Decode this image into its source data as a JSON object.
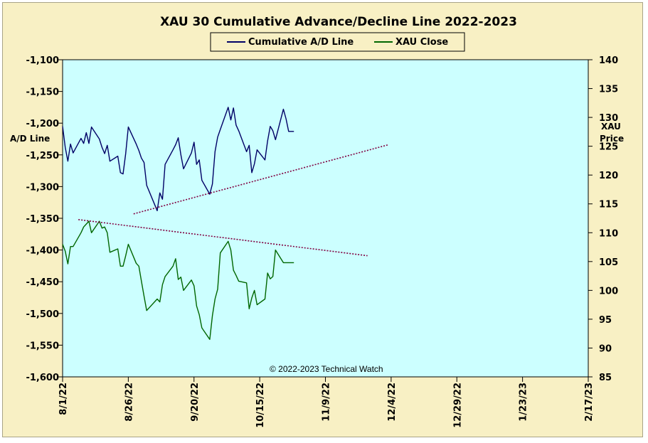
{
  "chart_data": {
    "type": "line",
    "title": "XAU 30 Cumulative Advance/Decline Line 2022-2023",
    "ylabel_left": "A/D Line",
    "ylabel_right_line1": "XAU",
    "ylabel_right_line2": "Price",
    "annotation": "© 2022-2023  Technical Watch",
    "legend_position": "top-center",
    "grid": false,
    "background_color": "#ccffff",
    "ylim_left": [
      -1600,
      -1100
    ],
    "ylim_right": [
      85,
      140
    ],
    "xlim": [
      "2022-08-01",
      "2023-02-17"
    ],
    "x_ticks": [
      "8/1/22",
      "8/26/22",
      "9/20/22",
      "10/15/22",
      "11/9/22",
      "12/4/22",
      "12/29/22",
      "1/23/23",
      "2/17/23"
    ],
    "y_ticks_left": [
      "-1,100",
      "-1,150",
      "-1,200",
      "-1,250",
      "-1,300",
      "-1,350",
      "-1,400",
      "-1,450",
      "-1,500",
      "-1,550",
      "-1,600"
    ],
    "y_ticks_right": [
      "140",
      "135",
      "130",
      "125",
      "120",
      "115",
      "110",
      "105",
      "100",
      "95",
      "90",
      "85"
    ],
    "series": [
      {
        "name": "Cumulative A/D Line",
        "axis": "left",
        "color": "#000066",
        "x": [
          "2022-08-01",
          "2022-08-02",
          "2022-08-03",
          "2022-08-04",
          "2022-08-05",
          "2022-08-08",
          "2022-08-09",
          "2022-08-10",
          "2022-08-11",
          "2022-08-12",
          "2022-08-15",
          "2022-08-16",
          "2022-08-17",
          "2022-08-18",
          "2022-08-19",
          "2022-08-22",
          "2022-08-23",
          "2022-08-24",
          "2022-08-25",
          "2022-08-26",
          "2022-08-29",
          "2022-08-30",
          "2022-08-31",
          "2022-09-01",
          "2022-09-02",
          "2022-09-06",
          "2022-09-07",
          "2022-09-08",
          "2022-09-09",
          "2022-09-12",
          "2022-09-13",
          "2022-09-14",
          "2022-09-15",
          "2022-09-16",
          "2022-09-19",
          "2022-09-20",
          "2022-09-21",
          "2022-09-22",
          "2022-09-23",
          "2022-09-26",
          "2022-09-27",
          "2022-09-28",
          "2022-09-29",
          "2022-09-30",
          "2022-10-03",
          "2022-10-04",
          "2022-10-05",
          "2022-10-06",
          "2022-10-07",
          "2022-10-10",
          "2022-10-11",
          "2022-10-12",
          "2022-10-13",
          "2022-10-14",
          "2022-10-17",
          "2022-10-18",
          "2022-10-19",
          "2022-10-20",
          "2022-10-21",
          "2022-10-24",
          "2022-10-25",
          "2022-10-26",
          "2022-10-27",
          "2022-10-28"
        ],
        "values": [
          -1205,
          -1238,
          -1260,
          -1233,
          -1247,
          -1224,
          -1232,
          -1215,
          -1232,
          -1206,
          -1225,
          -1238,
          -1248,
          -1235,
          -1260,
          -1252,
          -1278,
          -1280,
          -1248,
          -1206,
          -1233,
          -1243,
          -1255,
          -1262,
          -1298,
          -1338,
          -1310,
          -1320,
          -1265,
          -1242,
          -1234,
          -1223,
          -1250,
          -1272,
          -1247,
          -1230,
          -1265,
          -1258,
          -1290,
          -1312,
          -1296,
          -1245,
          -1222,
          -1210,
          -1175,
          -1195,
          -1176,
          -1203,
          -1212,
          -1245,
          -1235,
          -1278,
          -1264,
          -1242,
          -1258,
          -1228,
          -1205,
          -1212,
          -1226,
          -1178,
          -1193,
          -1213,
          -1213,
          -1213
        ]
      },
      {
        "name": "XAU Close",
        "axis": "right",
        "color": "#006600",
        "x": [
          "2022-08-01",
          "2022-08-02",
          "2022-08-03",
          "2022-08-04",
          "2022-08-05",
          "2022-08-08",
          "2022-08-09",
          "2022-08-10",
          "2022-08-11",
          "2022-08-12",
          "2022-08-15",
          "2022-08-16",
          "2022-08-17",
          "2022-08-18",
          "2022-08-19",
          "2022-08-22",
          "2022-08-23",
          "2022-08-24",
          "2022-08-25",
          "2022-08-26",
          "2022-08-29",
          "2022-08-30",
          "2022-08-31",
          "2022-09-01",
          "2022-09-02",
          "2022-09-06",
          "2022-09-07",
          "2022-09-08",
          "2022-09-09",
          "2022-09-12",
          "2022-09-13",
          "2022-09-14",
          "2022-09-15",
          "2022-09-16",
          "2022-09-19",
          "2022-09-20",
          "2022-09-21",
          "2022-09-22",
          "2022-09-23",
          "2022-09-26",
          "2022-09-27",
          "2022-09-28",
          "2022-09-29",
          "2022-09-30",
          "2022-10-03",
          "2022-10-04",
          "2022-10-05",
          "2022-10-06",
          "2022-10-07",
          "2022-10-10",
          "2022-10-11",
          "2022-10-12",
          "2022-10-13",
          "2022-10-14",
          "2022-10-17",
          "2022-10-18",
          "2022-10-19",
          "2022-10-20",
          "2022-10-21",
          "2022-10-24",
          "2022-10-25",
          "2022-10-26",
          "2022-10-27",
          "2022-10-28"
        ],
        "values": [
          108.0,
          106.8,
          104.6,
          107.6,
          107.6,
          110.0,
          111.0,
          111.5,
          112.0,
          110.0,
          112.0,
          110.8,
          111.0,
          110.0,
          106.6,
          107.2,
          104.2,
          104.2,
          106.0,
          108.0,
          104.7,
          104.2,
          101.6,
          99.0,
          96.5,
          98.5,
          98.0,
          101.0,
          102.4,
          104.2,
          105.5,
          101.9,
          102.3,
          100.0,
          101.8,
          100.8,
          97.3,
          95.8,
          93.5,
          91.5,
          95.6,
          98.5,
          100.2,
          106.5,
          108.5,
          107.0,
          103.5,
          102.6,
          101.6,
          101.3,
          96.8,
          98.7,
          100.0,
          97.5,
          98.5,
          103.0,
          102.0,
          102.4,
          107.0,
          104.8,
          104.8,
          104.8,
          104.8,
          104.8
        ]
      },
      {
        "name": "",
        "axis": "left",
        "style": "dotted",
        "color": "#800040",
        "x": [
          "2022-08-28",
          "2022-12-03"
        ],
        "values": [
          -1343,
          -1234
        ]
      },
      {
        "name": "",
        "axis": "left",
        "style": "dotted",
        "color": "#800040",
        "x": [
          "2022-08-07",
          "2022-11-25"
        ],
        "values": [
          -1352,
          -1409
        ]
      }
    ]
  }
}
